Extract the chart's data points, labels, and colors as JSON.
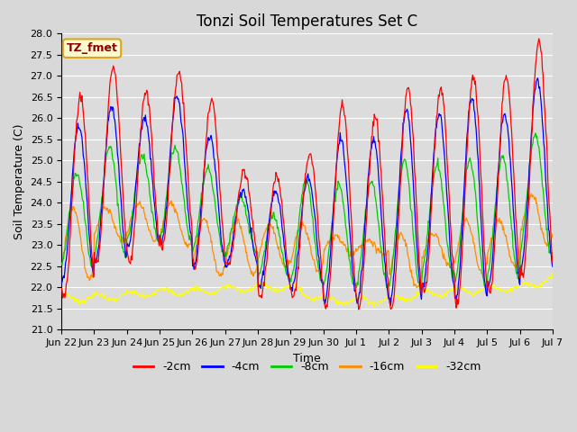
{
  "title": "Tonzi Soil Temperatures Set C",
  "xlabel": "Time",
  "ylabel": "Soil Temperature (C)",
  "ylim": [
    21.0,
    28.0
  ],
  "yticks": [
    21.0,
    21.5,
    22.0,
    22.5,
    23.0,
    23.5,
    24.0,
    24.5,
    25.0,
    25.5,
    26.0,
    26.5,
    27.0,
    27.5,
    28.0
  ],
  "xtick_labels": [
    "Jun 22",
    "Jun 23",
    "Jun 24",
    "Jun 25",
    "Jun 26",
    "Jun 27",
    "Jun 28",
    "Jun 29",
    "Jun 30",
    "Jul 1",
    "Jul 2",
    "Jul 3",
    "Jul 4",
    "Jul 5",
    "Jul 6",
    "Jul 7"
  ],
  "annotation_text": "TZ_fmet",
  "annotation_color": "#8B0000",
  "annotation_bg": "#FFFACD",
  "annotation_border": "#DAA520",
  "series_colors": [
    "#FF0000",
    "#0000FF",
    "#00CC00",
    "#FF8C00",
    "#FFFF00"
  ],
  "series_labels": [
    "-2cm",
    "-4cm",
    "-8cm",
    "-16cm",
    "-32cm"
  ],
  "fig_bg_color": "#D8D8D8",
  "plot_bg": "#DCDCDC",
  "grid_color": "#FFFFFF",
  "title_fontsize": 12,
  "label_fontsize": 9,
  "tick_fontsize": 8,
  "legend_fontsize": 9
}
